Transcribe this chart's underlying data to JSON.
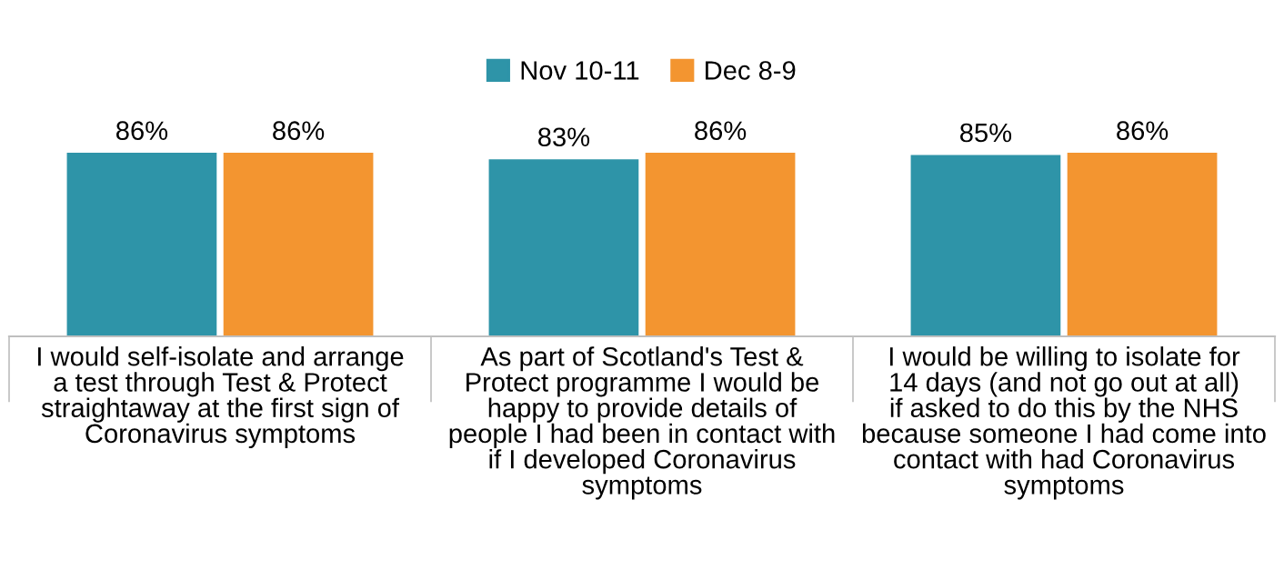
{
  "chart_data": {
    "type": "bar",
    "categories": [
      "I would self-isolate and arrange a test through Test & Protect straightaway at the first sign of Coronavirus symptoms",
      "As part of Scotland's Test & Protect programme I would be happy to provide details of people I had been in contact with if I developed Coronavirus symptoms",
      "I would be willing to isolate for 14 days (and not go out at all) if asked to do this by the NHS because someone I had come into contact with had Coronavirus symptoms"
    ],
    "series": [
      {
        "name": "Nov 10-11",
        "color": "#2e94a8",
        "values": [
          86,
          83,
          85
        ],
        "value_labels": [
          "86%",
          "83%",
          "85%"
        ]
      },
      {
        "name": "Dec 8-9",
        "color": "#f39530",
        "values": [
          86,
          86,
          86
        ],
        "value_labels": [
          "86%",
          "86%",
          "86%"
        ]
      }
    ],
    "legend": "top",
    "grid": false
  }
}
